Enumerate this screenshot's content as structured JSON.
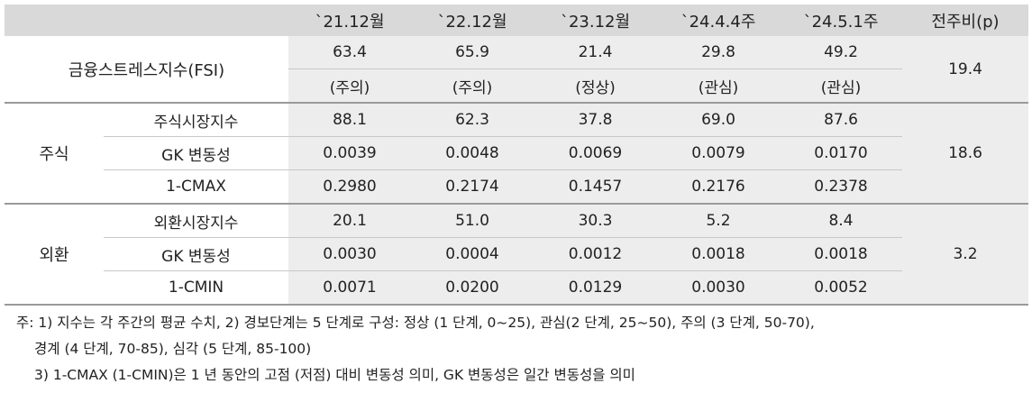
{
  "header": {
    "cols": [
      "`21.12월",
      "`22.12월",
      "`23.12월",
      "`24.4.4주",
      "`24.5.1주",
      "전주비(p)"
    ]
  },
  "fsi": {
    "label": "금융스트레스지수(FSI)",
    "values": [
      "63.4",
      "65.9",
      "21.4",
      "29.8",
      "49.2"
    ],
    "status": [
      "(주의)",
      "(주의)",
      "(정상)",
      "(관심)",
      "(관심)"
    ],
    "change": "19.4"
  },
  "stock": {
    "label": "주식",
    "change": "18.6",
    "rows": [
      {
        "name": "주식시장지수",
        "values": [
          "88.1",
          "62.3",
          "37.8",
          "69.0",
          "87.6"
        ]
      },
      {
        "name": "GK 변동성",
        "values": [
          "0.0039",
          "0.0048",
          "0.0069",
          "0.0079",
          "0.0170"
        ]
      },
      {
        "name": "1-CMAX",
        "values": [
          "0.2980",
          "0.2174",
          "0.1457",
          "0.2176",
          "0.2378"
        ]
      }
    ]
  },
  "fx": {
    "label": "외환",
    "change": "3.2",
    "rows": [
      {
        "name": "외환시장지수",
        "values": [
          "20.1",
          "51.0",
          "30.3",
          "5.2",
          "8.4"
        ]
      },
      {
        "name": "GK 변동성",
        "values": [
          "0.0030",
          "0.0004",
          "0.0012",
          "0.0018",
          "0.0018"
        ]
      },
      {
        "name": "1-CMIN",
        "values": [
          "0.0071",
          "0.0200",
          "0.0129",
          "0.0030",
          "0.0052"
        ]
      }
    ]
  },
  "notes": [
    "주: 1) 지수는 각 주간의 평균 수치, 2) 경보단계는 5 단계로 구성: 정상 (1 단계, 0~25), 관심(2 단계, 25~50), 주의 (3 단계, 50-70),",
    "경계 (4 단계, 70-85), 심각 (5 단계, 85-100)",
    "3) 1-CMAX (1-CMIN)은 1 년 동안의 고점 (저점) 대비 변동성 의미, GK 변동성은 일간 변동성을 의미"
  ]
}
